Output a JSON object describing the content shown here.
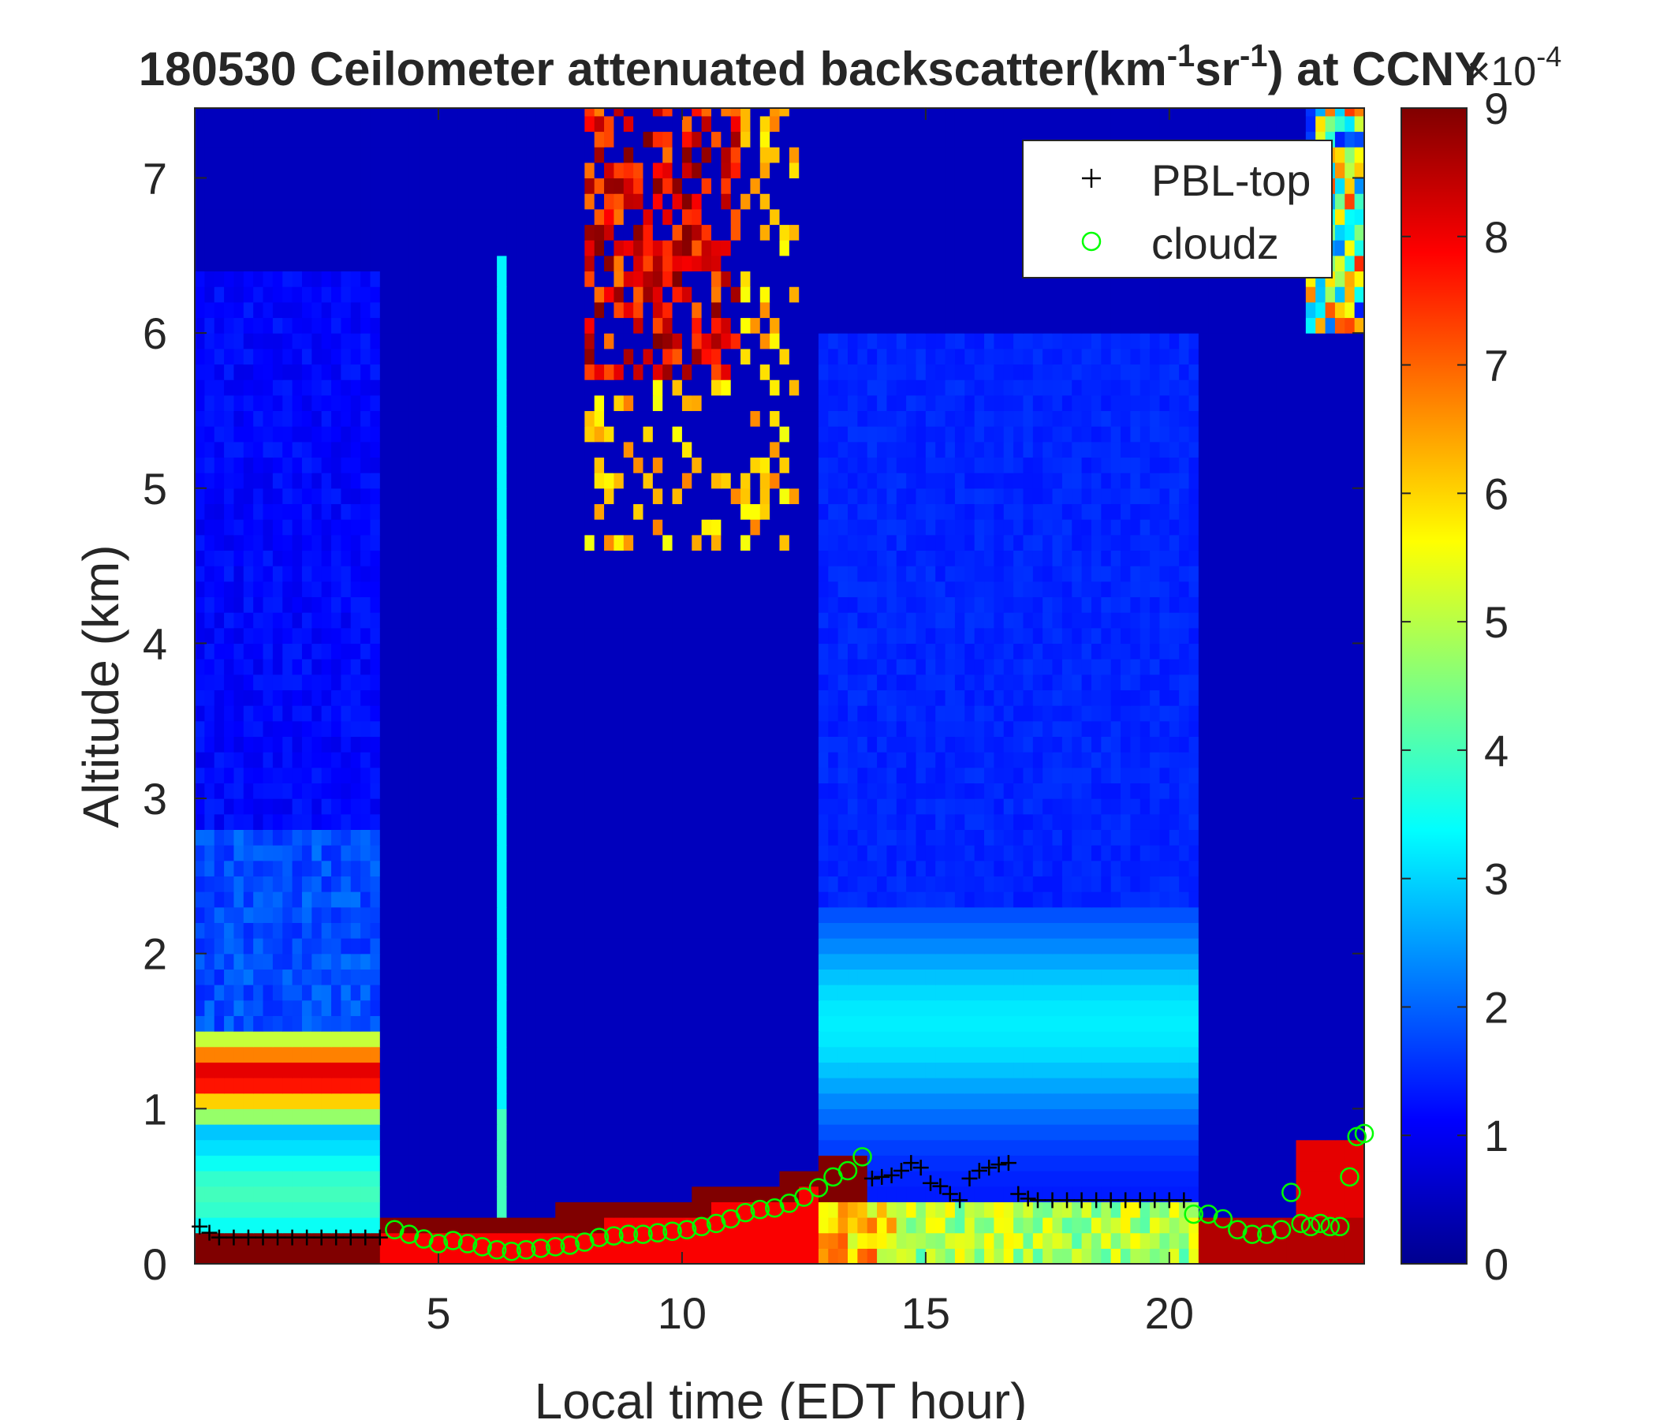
{
  "chart_data": {
    "type": "heatmap",
    "title": {
      "date": "180530",
      "main": "Ceilometer attenuated backscatter(km",
      "exp1": "-1",
      "mid": "sr",
      "exp2": "-1",
      "tail": ") at CCNY"
    },
    "xlabel": "Local time (EDT hour)",
    "ylabel": "Altitude (km)",
    "xlim": [
      0,
      24
    ],
    "ylim": [
      0,
      7.45
    ],
    "xticks": [
      5,
      10,
      15,
      20
    ],
    "yticks": [
      0,
      1,
      2,
      3,
      4,
      5,
      6,
      7
    ],
    "colormap": "jet",
    "colorbar": {
      "range": [
        0,
        9
      ],
      "ticks": [
        0,
        1,
        2,
        3,
        4,
        5,
        6,
        7,
        8,
        9
      ],
      "multiplier_base": "×10",
      "multiplier_exp": "-4"
    },
    "legend": {
      "position": "top-right",
      "entries": [
        {
          "label": "PBL-top",
          "marker": "+",
          "color": "#000000"
        },
        {
          "label": "cloudz",
          "marker": "o",
          "color": "#00ff00"
        }
      ]
    },
    "series": [
      {
        "name": "PBL-top",
        "marker": "+",
        "color": "#000000",
        "points": [
          [
            0.1,
            0.24
          ],
          [
            0.3,
            0.2
          ],
          [
            0.5,
            0.17
          ],
          [
            0.8,
            0.17
          ],
          [
            1.1,
            0.17
          ],
          [
            1.4,
            0.17
          ],
          [
            1.7,
            0.17
          ],
          [
            2.0,
            0.17
          ],
          [
            2.3,
            0.17
          ],
          [
            2.6,
            0.17
          ],
          [
            2.9,
            0.17
          ],
          [
            3.2,
            0.17
          ],
          [
            3.5,
            0.17
          ],
          [
            3.8,
            0.17
          ],
          [
            13.9,
            0.55
          ],
          [
            14.1,
            0.56
          ],
          [
            14.3,
            0.57
          ],
          [
            14.5,
            0.6
          ],
          [
            14.7,
            0.65
          ],
          [
            14.9,
            0.62
          ],
          [
            15.1,
            0.52
          ],
          [
            15.3,
            0.5
          ],
          [
            15.5,
            0.45
          ],
          [
            15.7,
            0.41
          ],
          [
            15.9,
            0.55
          ],
          [
            16.1,
            0.6
          ],
          [
            16.3,
            0.62
          ],
          [
            16.5,
            0.64
          ],
          [
            16.7,
            0.65
          ],
          [
            16.9,
            0.45
          ],
          [
            17.1,
            0.42
          ],
          [
            17.3,
            0.41
          ],
          [
            17.6,
            0.41
          ],
          [
            17.9,
            0.41
          ],
          [
            18.2,
            0.41
          ],
          [
            18.5,
            0.41
          ],
          [
            18.8,
            0.41
          ],
          [
            19.1,
            0.41
          ],
          [
            19.4,
            0.41
          ],
          [
            19.7,
            0.41
          ],
          [
            20.0,
            0.41
          ],
          [
            20.3,
            0.41
          ]
        ]
      },
      {
        "name": "cloudz",
        "marker": "o",
        "color": "#00ff00",
        "points": [
          [
            4.1,
            0.22
          ],
          [
            4.4,
            0.19
          ],
          [
            4.7,
            0.16
          ],
          [
            5.0,
            0.13
          ],
          [
            5.3,
            0.15
          ],
          [
            5.6,
            0.13
          ],
          [
            5.9,
            0.11
          ],
          [
            6.2,
            0.09
          ],
          [
            6.5,
            0.08
          ],
          [
            6.8,
            0.09
          ],
          [
            7.1,
            0.1
          ],
          [
            7.4,
            0.11
          ],
          [
            7.7,
            0.12
          ],
          [
            8.0,
            0.14
          ],
          [
            8.3,
            0.17
          ],
          [
            8.6,
            0.18
          ],
          [
            8.9,
            0.19
          ],
          [
            9.2,
            0.19
          ],
          [
            9.5,
            0.2
          ],
          [
            9.8,
            0.21
          ],
          [
            10.1,
            0.22
          ],
          [
            10.4,
            0.24
          ],
          [
            10.7,
            0.26
          ],
          [
            11.0,
            0.29
          ],
          [
            11.3,
            0.33
          ],
          [
            11.6,
            0.35
          ],
          [
            11.9,
            0.36
          ],
          [
            12.2,
            0.39
          ],
          [
            12.5,
            0.43
          ],
          [
            12.8,
            0.49
          ],
          [
            13.1,
            0.56
          ],
          [
            13.4,
            0.6
          ],
          [
            13.7,
            0.69
          ],
          [
            20.5,
            0.32
          ],
          [
            20.8,
            0.32
          ],
          [
            21.1,
            0.29
          ],
          [
            21.4,
            0.22
          ],
          [
            21.7,
            0.19
          ],
          [
            22.0,
            0.19
          ],
          [
            22.3,
            0.22
          ],
          [
            22.5,
            0.46
          ],
          [
            22.7,
            0.26
          ],
          [
            22.9,
            0.24
          ],
          [
            23.1,
            0.26
          ],
          [
            23.3,
            0.24
          ],
          [
            23.5,
            0.24
          ],
          [
            23.7,
            0.56
          ],
          [
            23.85,
            0.82
          ],
          [
            24.0,
            0.84
          ]
        ]
      }
    ]
  }
}
